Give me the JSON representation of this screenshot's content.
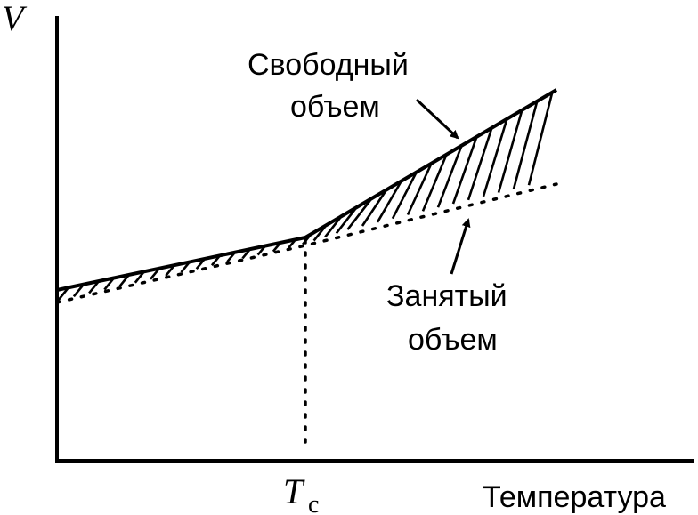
{
  "diagram": {
    "y_axis_label": "V",
    "x_axis_label": "Температура",
    "tg_symbol": "T",
    "tg_subscript": "с",
    "free_volume_label": [
      "Свободный",
      "объем"
    ],
    "occupied_volume_label": [
      "Занятый",
      "объем"
    ],
    "line_color": "#000000",
    "background_color": "#ffffff"
  }
}
